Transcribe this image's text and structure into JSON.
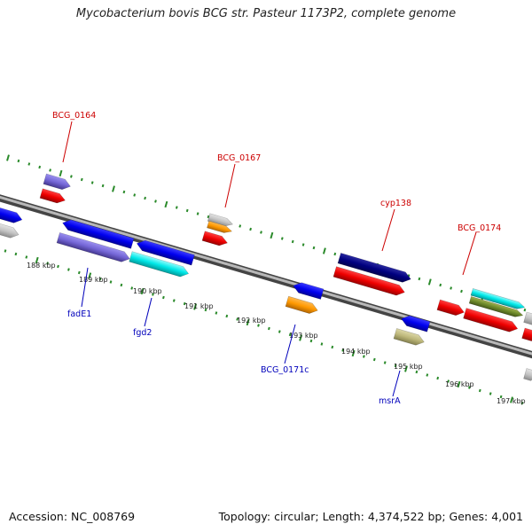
{
  "title": "Mycobacterium bovis BCG str. Pasteur 1173P2, complete genome",
  "footer": {
    "accession": "Accession: NC_008769",
    "summary": "Topology: circular; Length: 4,374,522 bp; Genes: 4,001"
  },
  "colors": {
    "red_label": "#cc0000",
    "blue_label": "#0000bb",
    "tick": "#2a8a2a"
  },
  "ruler": [
    "188 kbp",
    "189 kbp",
    "190 kbp",
    "191 kbp",
    "192 kbp",
    "193 kbp",
    "194 kbp",
    "195 kbp",
    "196 kbp",
    "197 kbp"
  ],
  "forward_labels": [
    "BCG_0164",
    "BCG_0167",
    "cyp138",
    "BCG_0174"
  ],
  "reverse_labels": [
    "fadE1",
    "fgd2",
    "BCG_0171c",
    "msrA"
  ],
  "gene_colors": [
    "red",
    "blue",
    "slate-purple",
    "orange",
    "silver",
    "navy",
    "cyan",
    "olive",
    "khaki"
  ]
}
